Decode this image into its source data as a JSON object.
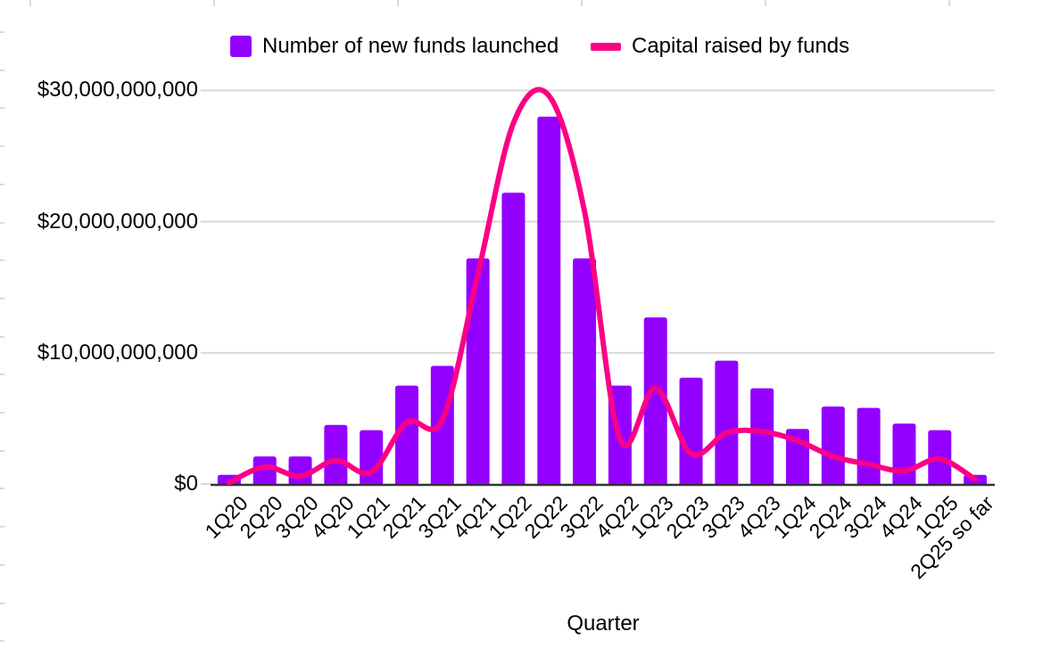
{
  "colors": {
    "bar": "#9400FF",
    "line": "#FB0085",
    "gridline": "#D9D9D9",
    "axis_line": "#333333",
    "text": "#000000"
  },
  "chart_data": {
    "type": "combo_bar_line",
    "title": "",
    "xlabel": "Quarter",
    "ylabel": "",
    "legend_position": "top",
    "grid": "horizontal gridlines every $10B",
    "y_tick_labels": [
      "$0",
      "$10,000,000,000",
      "$20,000,000,000",
      "$30,000,000,000"
    ],
    "ylim_usd_billions": [
      0,
      30
    ],
    "categories": [
      "1Q20",
      "2Q20",
      "3Q20",
      "4Q20",
      "1Q21",
      "2Q21",
      "3Q21",
      "4Q21",
      "1Q22",
      "2Q22",
      "3Q22",
      "4Q22",
      "1Q23",
      "2Q23",
      "3Q23",
      "4Q23",
      "1Q24",
      "2Q24",
      "3Q24",
      "4Q24",
      "1Q25",
      "2Q25 so far"
    ],
    "series": [
      {
        "name": "Number of new funds launched",
        "type": "bar",
        "color": "#9400FF",
        "units": "plotted against hidden axis; heights expressed in left-axis USD billions equivalents",
        "values": [
          0.7,
          2.1,
          2.1,
          4.5,
          4.1,
          7.5,
          9.0,
          17.2,
          22.2,
          28.0,
          17.2,
          7.5,
          12.7,
          8.1,
          9.4,
          7.3,
          4.2,
          5.9,
          5.8,
          4.6,
          4.1,
          0.7
        ]
      },
      {
        "name": "Capital raised by funds",
        "type": "line",
        "color": "#FB0085",
        "units": "USD billions (left axis)",
        "values": [
          0.1,
          1.3,
          0.6,
          1.8,
          0.9,
          4.7,
          4.9,
          16.0,
          27.5,
          29.6,
          20.8,
          3.4,
          7.3,
          2.3,
          3.9,
          4.0,
          3.3,
          2.1,
          1.5,
          1.0,
          1.9,
          0.35
        ]
      }
    ]
  }
}
